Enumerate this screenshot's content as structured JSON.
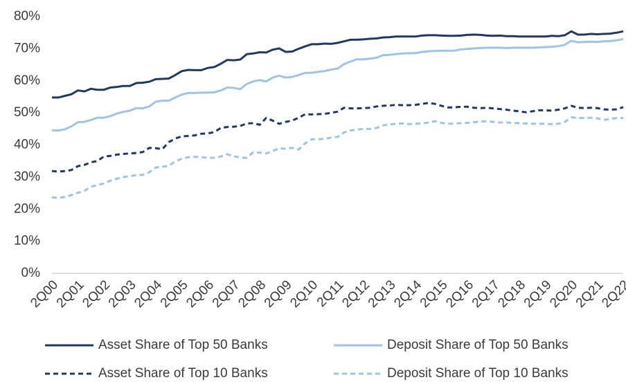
{
  "chart_data": {
    "type": "line",
    "categories": [
      "2Q00",
      null,
      null,
      null,
      "2Q01",
      null,
      null,
      null,
      "2Q02",
      null,
      null,
      null,
      "2Q03",
      null,
      null,
      null,
      "2Q04",
      null,
      null,
      null,
      "2Q05",
      null,
      null,
      null,
      "2Q06",
      null,
      null,
      null,
      "2Q07",
      null,
      null,
      null,
      "2Q08",
      null,
      null,
      null,
      "2Q09",
      null,
      null,
      null,
      "2Q10",
      null,
      null,
      null,
      "2Q11",
      null,
      null,
      null,
      "2Q12",
      null,
      null,
      null,
      "2Q13",
      null,
      null,
      null,
      "2Q14",
      null,
      null,
      null,
      "2Q15",
      null,
      null,
      null,
      "2Q16",
      null,
      null,
      null,
      "2Q17",
      null,
      null,
      null,
      "2Q18",
      null,
      null,
      null,
      "2Q19",
      null,
      null,
      null,
      "2Q20",
      null,
      null,
      null,
      "2Q21",
      null,
      null,
      null,
      "2Q22"
    ],
    "series": [
      {
        "name": "Asset Share of Top 50 Banks",
        "color": "#1f3864",
        "dashed": false,
        "values": [
          54.8,
          54.8,
          55.3,
          55.8,
          57,
          56.7,
          57.5,
          57.2,
          57.2,
          57.9,
          58.1,
          58.4,
          58.4,
          59.3,
          59.4,
          59.7,
          60.5,
          60.6,
          60.7,
          61.8,
          63,
          63.4,
          63.3,
          63.3,
          64,
          64.3,
          65.3,
          66.5,
          66.4,
          66.6,
          68.3,
          68.5,
          68.9,
          68.8,
          69.7,
          70.1,
          69,
          69.1,
          70,
          70.7,
          71.4,
          71.4,
          71.6,
          71.5,
          71.8,
          72.3,
          72.8,
          72.8,
          72.9,
          73.1,
          73.2,
          73.5,
          73.6,
          73.8,
          73.8,
          73.8,
          73.8,
          74.1,
          74.2,
          74.2,
          74.1,
          74,
          74,
          74.1,
          74.3,
          74.4,
          74.3,
          74.1,
          74,
          74.1,
          73.9,
          73.9,
          73.8,
          73.8,
          73.8,
          73.8,
          73.8,
          74,
          73.9,
          74.2,
          75.4,
          74.4,
          74.4,
          74.6,
          74.5,
          74.6,
          74.7,
          75,
          75.4
        ]
      },
      {
        "name": "Deposit Share of Top 50 Banks",
        "color": "#9dc3e6",
        "dashed": false,
        "values": [
          44.6,
          44.5,
          44.9,
          45.8,
          47.1,
          47.2,
          47.8,
          48.5,
          48.5,
          49,
          49.8,
          50.3,
          50.7,
          51.5,
          51.4,
          52,
          53.5,
          53.8,
          53.8,
          54.8,
          55.7,
          56.2,
          56.2,
          56.3,
          56.3,
          56.4,
          57,
          57.9,
          57.8,
          57.4,
          59,
          59.8,
          60.2,
          59.8,
          61,
          61.6,
          61,
          61.2,
          61.8,
          62.5,
          62.5,
          62.8,
          63,
          63.5,
          63.8,
          65.2,
          66,
          66.7,
          66.7,
          66.9,
          67.2,
          68,
          68.1,
          68.3,
          68.5,
          68.6,
          68.6,
          69,
          69.2,
          69.3,
          69.4,
          69.4,
          69.4,
          69.8,
          69.9,
          70.1,
          70.2,
          70.3,
          70.3,
          70.3,
          70.2,
          70.3,
          70.3,
          70.3,
          70.3,
          70.4,
          70.5,
          70.6,
          70.8,
          71.2,
          72.5,
          72,
          72.1,
          72.2,
          72.1,
          72.3,
          72.4,
          72.6,
          73
        ]
      },
      {
        "name": "Asset Share of Top 10 Banks",
        "color": "#1f3864",
        "dashed": true,
        "values": [
          31.9,
          31.7,
          31.9,
          32.2,
          33.4,
          33.8,
          34.6,
          35,
          36.4,
          36.6,
          37,
          37.2,
          37.4,
          37.5,
          37.8,
          39.1,
          39,
          38.7,
          40.9,
          42,
          42.7,
          42.8,
          43,
          43.5,
          43.6,
          44,
          45.3,
          45.6,
          45.7,
          45.9,
          46.7,
          46.8,
          46.3,
          48.4,
          47.6,
          46.6,
          47.2,
          47.6,
          48.5,
          49.6,
          49.5,
          49.6,
          49.7,
          50,
          50.4,
          51.6,
          51.4,
          51.4,
          51.5,
          51.6,
          52,
          52.2,
          52.3,
          52.5,
          52.4,
          52.4,
          52.5,
          52.8,
          53.1,
          52.8,
          52.2,
          51.7,
          51.7,
          51.9,
          51.9,
          51.6,
          51.5,
          51.6,
          51.4,
          51.2,
          51,
          50.7,
          50.5,
          50.2,
          50.5,
          50.8,
          50.8,
          50.7,
          51,
          51.4,
          52.2,
          51.6,
          51.5,
          51.6,
          51.5,
          51.1,
          51,
          51.1,
          51.8
        ]
      },
      {
        "name": "Deposit Share of Top 10 Banks",
        "color": "#9dc3e6",
        "dashed": true,
        "values": [
          23.7,
          23.5,
          23.8,
          24.4,
          25.1,
          25.7,
          27,
          27.5,
          28,
          28.9,
          29.5,
          30,
          30.3,
          30.6,
          30.7,
          31.5,
          33,
          33.2,
          33.5,
          34.9,
          35.7,
          36.2,
          36.3,
          36.2,
          36,
          36,
          36.4,
          37.1,
          36.5,
          36.1,
          36,
          37.7,
          37.6,
          37.4,
          38.1,
          39,
          38.8,
          39.1,
          38.6,
          40.5,
          41.8,
          41.8,
          41.9,
          42.3,
          42.5,
          43.9,
          44.5,
          44.8,
          45,
          45,
          45.3,
          46.1,
          46.4,
          46.6,
          46.7,
          46.5,
          46.6,
          46.7,
          47,
          47.4,
          46.9,
          46.6,
          46.7,
          46.8,
          46.9,
          47.1,
          47.3,
          47.4,
          47.2,
          47,
          47,
          46.9,
          46.8,
          46.7,
          46.6,
          46.6,
          46.6,
          46.5,
          46.6,
          47.2,
          48.6,
          48.4,
          48.4,
          48.5,
          48.3,
          47.8,
          48.1,
          48.4,
          48.4
        ]
      }
    ],
    "ylim": [
      0,
      80
    ],
    "yticks": [
      {
        "value": 0,
        "label": "0%"
      },
      {
        "value": 10,
        "label": "10%"
      },
      {
        "value": 20,
        "label": "20%"
      },
      {
        "value": 30,
        "label": "30%"
      },
      {
        "value": 40,
        "label": "40%"
      },
      {
        "value": 50,
        "label": "50%"
      },
      {
        "value": 60,
        "label": "60%"
      },
      {
        "value": 70,
        "label": "70%"
      },
      {
        "value": 80,
        "label": "80%"
      }
    ],
    "grid": false,
    "legend": "bottom"
  }
}
